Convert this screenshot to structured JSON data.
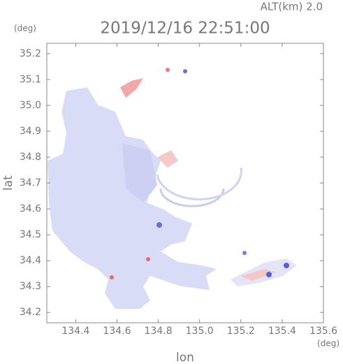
{
  "chart_data": {
    "type": "map",
    "title": "2019/12/16 22:51:00",
    "subtitle": "ALT(km) 2.0",
    "y_unit": "(deg)",
    "x_unit": "(deg)",
    "xlabel": "lon",
    "ylabel": "lat",
    "xlim": [
      134.26,
      135.6
    ],
    "ylim": [
      34.16,
      35.24
    ],
    "xticks": [
      134.4,
      134.6,
      134.8,
      {
        "value": 135,
        "label": "135.0"
      },
      135.2,
      135.4,
      135.6
    ],
    "yticks": [
      34.2,
      34.3,
      34.4,
      34.5,
      34.6,
      34.7,
      34.8,
      34.9,
      {
        "value": 35,
        "label": "35.0"
      },
      35.1,
      35.2
    ]
  }
}
